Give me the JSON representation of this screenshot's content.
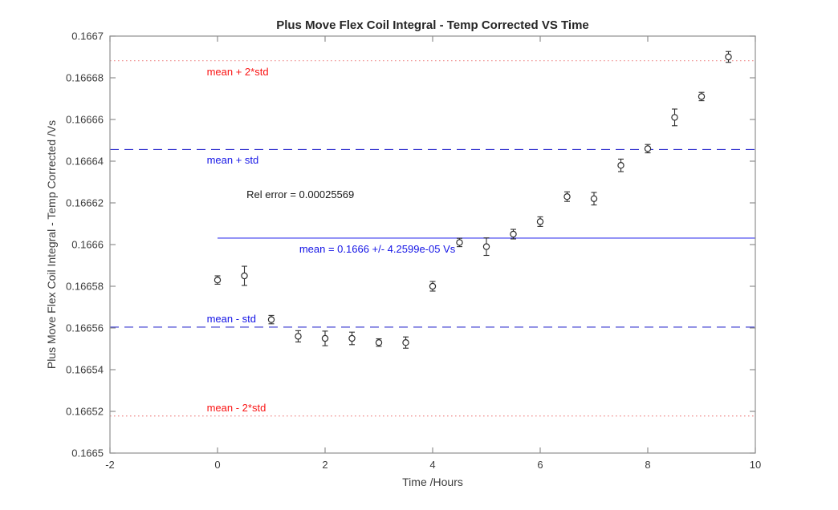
{
  "chart_data": {
    "type": "scatter",
    "title": "Plus Move Flex Coil Integral - Temp Corrected VS Time",
    "xlabel": "Time /Hours",
    "ylabel": "Plus Move Flex Coil Integral - Temp Corrected /Vs",
    "xlim": [
      -2,
      10
    ],
    "ylim": [
      0.1665,
      0.1667
    ],
    "grid": false,
    "legend": false,
    "axis_color": "#8f8f8f",
    "tick_label_color": "#3c3c3c",
    "xticks": [
      {
        "v": -2,
        "label": "-2"
      },
      {
        "v": 0,
        "label": "0"
      },
      {
        "v": 2,
        "label": "2"
      },
      {
        "v": 4,
        "label": "4"
      },
      {
        "v": 6,
        "label": "6"
      },
      {
        "v": 8,
        "label": "8"
      },
      {
        "v": 10,
        "label": "10"
      }
    ],
    "yticks": [
      {
        "v": 0.1665,
        "label": "0.1665"
      },
      {
        "v": 0.16652,
        "label": "0.16652"
      },
      {
        "v": 0.16654,
        "label": "0.16654"
      },
      {
        "v": 0.16656,
        "label": "0.16656"
      },
      {
        "v": 0.16658,
        "label": "0.16658"
      },
      {
        "v": 0.1666,
        "label": "0.1666"
      },
      {
        "v": 0.16662,
        "label": "0.16662"
      },
      {
        "v": 0.16664,
        "label": "0.16664"
      },
      {
        "v": 0.16666,
        "label": "0.16666"
      },
      {
        "v": 0.16668,
        "label": "0.16668"
      },
      {
        "v": 0.1667,
        "label": "0.1667"
      }
    ],
    "series": [
      {
        "name": "coil-integral-errorbar-series",
        "marker": "open-circle",
        "color": "#2e2e2e",
        "x": [
          0,
          0.5,
          1,
          1.5,
          2,
          2.5,
          3,
          3.5,
          4,
          4.5,
          5,
          5.5,
          6,
          6.5,
          7,
          7.5,
          8,
          8.5,
          9,
          9.5
        ],
        "y": [
          0.166583,
          0.166585,
          0.166564,
          0.166556,
          0.166555,
          0.166555,
          0.166553,
          0.166553,
          0.16658,
          0.166601,
          0.166599,
          0.166605,
          0.166611,
          0.166623,
          0.166622,
          0.166638,
          0.166646,
          0.166661,
          0.166671,
          0.16669
        ],
        "yerr": [
          2e-06,
          4.6e-06,
          2e-06,
          2.7e-06,
          3.5e-06,
          3e-06,
          1.8e-06,
          2.7e-06,
          2.3e-06,
          2e-06,
          4.2e-06,
          2.3e-06,
          2.3e-06,
          2.3e-06,
          3e-06,
          3e-06,
          2e-06,
          4e-06,
          2e-06,
          2.6e-06
        ]
      }
    ],
    "ref_lines": [
      {
        "name": "mean-plus-2std-line",
        "label": "mean + 2*std",
        "value": 0.1666882,
        "style": "dotted",
        "line_color": "#ef8f8f",
        "label_color": "#fa1414",
        "x_range": [
          -2,
          10
        ],
        "label_x": -0.2,
        "label_position": "below"
      },
      {
        "name": "mean-plus-std-line",
        "label": "mean + std",
        "value": 0.1666456,
        "style": "dashed",
        "line_color": "#3333cf",
        "label_color": "#1414e6",
        "x_range": [
          -2,
          10
        ],
        "label_x": -0.2,
        "label_position": "below"
      },
      {
        "name": "mean-line",
        "label": "mean = 0.1666 +/- 4.2599e-05 Vs",
        "value": 0.1666031,
        "style": "solid",
        "line_color": "#5a5af0",
        "label_color": "#1414e6",
        "x_range": [
          0,
          10
        ],
        "label_x": 1.52,
        "label_position": "below"
      },
      {
        "name": "mean-minus-std-line",
        "label": "mean - std",
        "value": 0.1665604,
        "style": "dashed",
        "line_color": "#3333cf",
        "label_color": "#1414e6",
        "x_range": [
          -2,
          10
        ],
        "label_x": -0.2,
        "label_position": "above"
      },
      {
        "name": "mean-minus-2std-line",
        "label": "mean - 2*std",
        "value": 0.1665178,
        "style": "dotted",
        "line_color": "#ef8f8f",
        "label_color": "#fa1414",
        "x_range": [
          -2,
          10
        ],
        "label_x": -0.2,
        "label_position": "above"
      }
    ],
    "annotations": [
      {
        "name": "rel-error-text",
        "text": "Rel error = 0.00025569",
        "color": "#1a1a1a",
        "x": 0.54,
        "y": 0.166624
      }
    ],
    "stats": {
      "mean": "0.1666",
      "std": "4.2599e-05",
      "rel_error": "0.00025569",
      "units": "Vs"
    }
  }
}
